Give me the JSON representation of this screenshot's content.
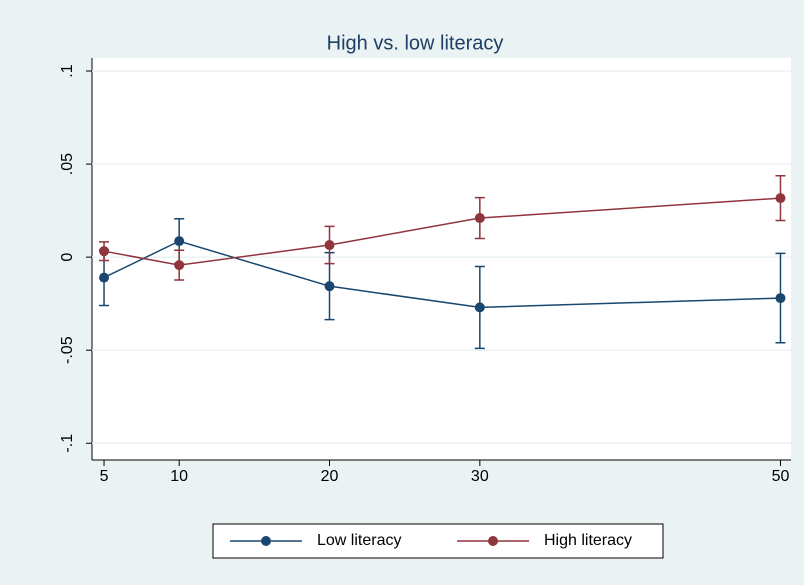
{
  "chart_data": {
    "type": "line",
    "title": "High vs. low literacy",
    "x": [
      5,
      10,
      20,
      30,
      50
    ],
    "series": [
      {
        "name": "Low literacy",
        "color": "#1a476f",
        "values": [
          -0.011,
          0.0086,
          -0.0156,
          -0.027,
          -0.022
        ],
        "errors": [
          0.015,
          0.012,
          0.018,
          0.022,
          0.024
        ]
      },
      {
        "name": "High literacy",
        "color": "#90353b",
        "values": [
          0.0032,
          -0.0043,
          0.0065,
          0.021,
          0.0317
        ],
        "errors": [
          0.005,
          0.008,
          0.01,
          0.011,
          0.012
        ]
      }
    ],
    "xlim": [
      4.2,
      50.7
    ],
    "xticks": [
      5,
      10,
      20,
      30,
      50
    ],
    "ylim": [
      -0.109,
      0.107
    ],
    "yticks": [
      {
        "value": -0.1,
        "label": "-.1"
      },
      {
        "value": -0.05,
        "label": "-.05"
      },
      0,
      {
        "value": 0.05,
        "label": ".05"
      },
      {
        "value": 0.1,
        "label": ".1"
      }
    ],
    "grid": true,
    "legend": "bottom"
  }
}
